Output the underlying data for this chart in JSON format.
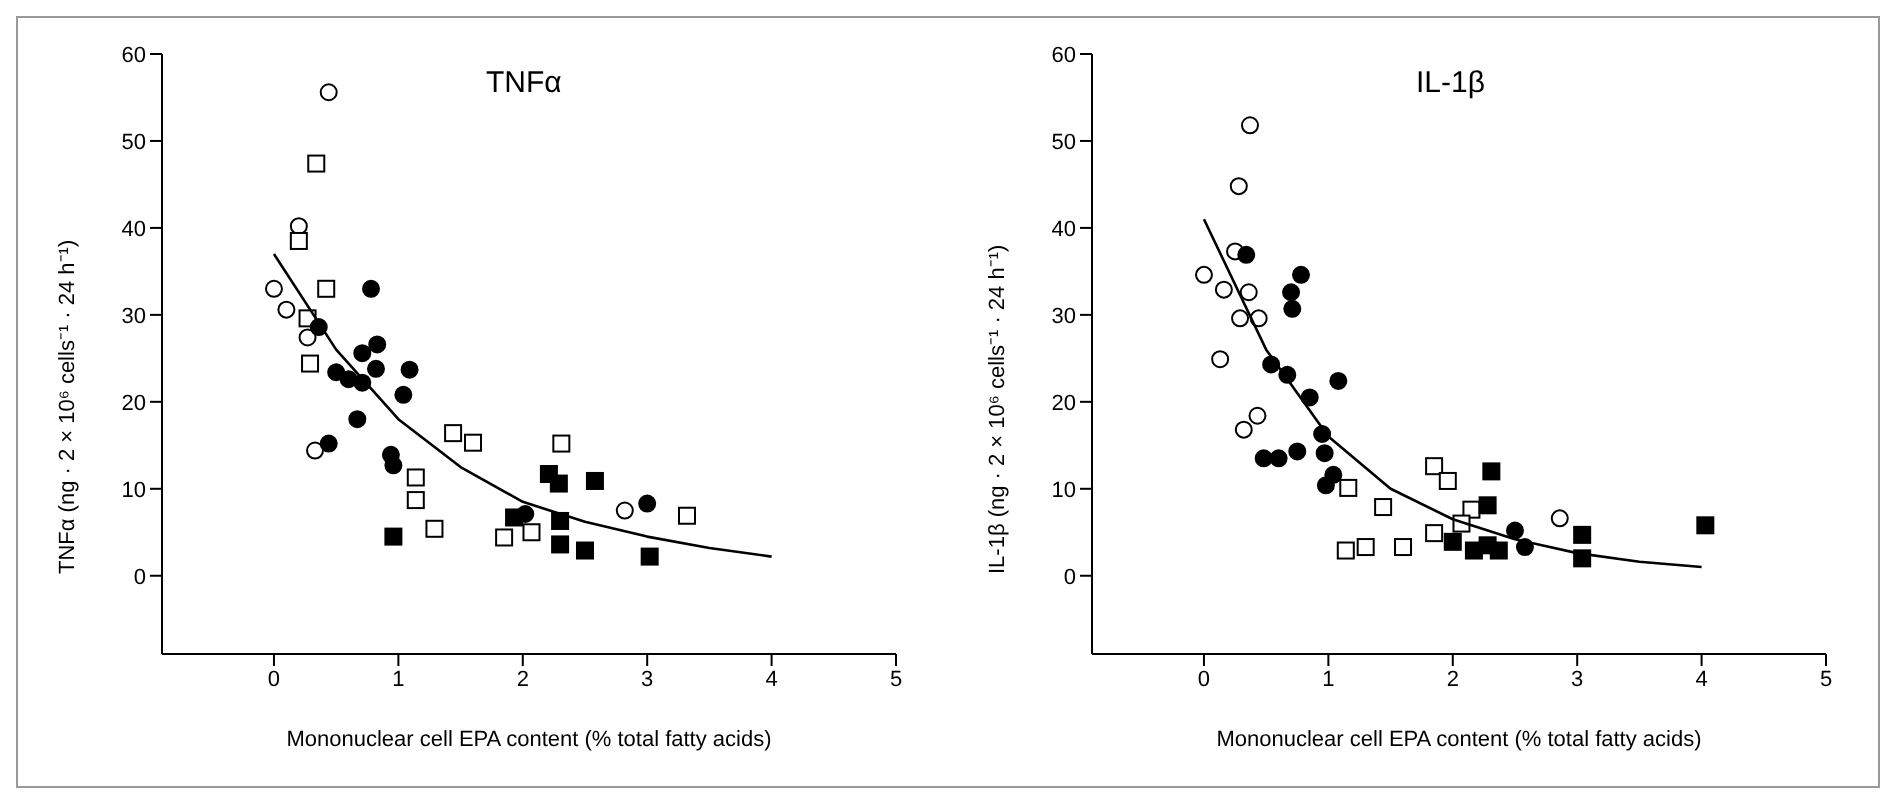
{
  "chart_data": [
    {
      "type": "scatter",
      "title": "TNFα",
      "xlabel": "Mononuclear cell EPA content (% total fatty acids)",
      "ylabel": "TNFα (ng · 2 × 10⁶ cells⁻¹ · 24 h⁻¹)",
      "xlim": [
        -0.9,
        5
      ],
      "xticks": [
        0,
        1,
        2,
        3,
        4,
        5
      ],
      "ylim": [
        -9,
        60
      ],
      "yticks": [
        0,
        10,
        20,
        30,
        40,
        50,
        60
      ],
      "grid": false,
      "series": [
        {
          "color": "#ffffff",
          "marker": "circle",
          "x": [
            0.44,
            0.2,
            0,
            0.1,
            0.27,
            0.33,
            2.82
          ],
          "values": [
            55.6,
            40.2,
            33,
            30.6,
            27.4,
            14.4,
            7.5
          ]
        },
        {
          "color": "#ffffff",
          "marker": "square",
          "x": [
            0.34,
            0.2,
            0.42,
            0.29,
            0.27,
            1.44,
            1.6,
            1.14,
            1.14,
            1.29,
            1.85,
            2.07,
            2.31,
            3.32
          ],
          "values": [
            47.4,
            38.5,
            33,
            24.4,
            29.6,
            16.4,
            15.3,
            11.3,
            8.7,
            5.4,
            4.4,
            5,
            15.2,
            6.9
          ]
        },
        {
          "color": "#000000",
          "marker": "circle",
          "x": [
            0.78,
            0.36,
            0.5,
            0.6,
            0.71,
            0.83,
            0.71,
            1.09,
            1.04,
            0.44,
            0.67,
            0.94,
            0.96,
            0.82,
            2.02,
            3
          ],
          "values": [
            33,
            28.6,
            23.4,
            22.6,
            25.6,
            26.6,
            22.2,
            23.7,
            20.8,
            15.2,
            18,
            13.9,
            12.7,
            23.8,
            7.1,
            8.3
          ]
        },
        {
          "color": "#000000",
          "marker": "square",
          "x": [
            0.96,
            2.21,
            2.29,
            2.58,
            2.3,
            2.3,
            2.5,
            3.02,
            1.93
          ],
          "values": [
            4.5,
            11.7,
            10.6,
            10.9,
            6.3,
            3.6,
            2.9,
            2.2,
            6.7
          ]
        },
        {
          "type": "line",
          "color": "#000000",
          "marker": "none",
          "x": [
            0,
            0.5,
            1,
            1.5,
            2,
            2.5,
            3,
            3.5,
            4
          ],
          "values": [
            37,
            26,
            18,
            12.5,
            8.5,
            6.2,
            4.5,
            3.2,
            2.2
          ]
        }
      ]
    },
    {
      "type": "scatter",
      "title": "IL-1β",
      "xlabel": "Mononuclear cell EPA content (% total fatty acids)",
      "ylabel": "IL-1β (ng · 2 × 10⁶ cells⁻¹ · 24 h⁻¹)",
      "xlim": [
        -0.9,
        5
      ],
      "xticks": [
        0,
        1,
        2,
        3,
        4,
        5
      ],
      "ylim": [
        -9,
        60
      ],
      "yticks": [
        0,
        10,
        20,
        30,
        40,
        50,
        60
      ],
      "grid": false,
      "series": [
        {
          "color": "#ffffff",
          "marker": "circle",
          "x": [
            0.37,
            0.28,
            0,
            0.16,
            0.25,
            0.36,
            0.29,
            0.44,
            0.13,
            0.32,
            0.43,
            2.86
          ],
          "values": [
            51.8,
            44.8,
            34.6,
            32.9,
            37.3,
            32.6,
            29.6,
            29.6,
            24.9,
            16.8,
            18.4,
            6.6
          ]
        },
        {
          "color": "#ffffff",
          "marker": "square",
          "x": [
            1.85,
            1.96,
            1.16,
            1.44,
            1.14,
            1.3,
            1.6,
            1.85,
            2.15,
            2.07
          ],
          "values": [
            12.6,
            10.9,
            10.1,
            7.9,
            2.9,
            3.3,
            3.3,
            4.9,
            7.6,
            6
          ]
        },
        {
          "color": "#000000",
          "marker": "circle",
          "x": [
            0.34,
            0.78,
            0.7,
            0.71,
            0.54,
            0.67,
            0.85,
            1.08,
            0.95,
            0.97,
            1.04,
            0.98,
            0.48,
            0.6,
            0.75,
            2.5,
            2.58
          ],
          "values": [
            36.9,
            34.6,
            32.6,
            30.7,
            24.3,
            23.1,
            20.5,
            22.4,
            16.3,
            14.1,
            11.6,
            10.4,
            13.5,
            13.5,
            14.3,
            5.2,
            3.3
          ]
        },
        {
          "color": "#000000",
          "marker": "square",
          "x": [
            4.03,
            2.31,
            2.28,
            2.28,
            2,
            2.17,
            3.04,
            3.04,
            2.37
          ],
          "values": [
            5.8,
            12,
            8.1,
            3.5,
            3.9,
            2.9,
            4.7,
            2,
            2.9
          ]
        },
        {
          "type": "line",
          "color": "#000000",
          "marker": "none",
          "x": [
            0,
            0.5,
            1,
            1.5,
            2,
            2.5,
            3,
            3.5,
            4
          ],
          "values": [
            41,
            26,
            16,
            10,
            6.5,
            4.2,
            2.6,
            1.6,
            1
          ]
        }
      ]
    }
  ]
}
